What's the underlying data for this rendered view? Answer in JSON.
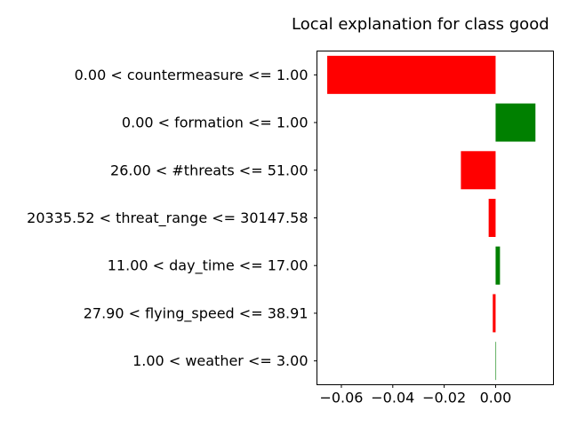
{
  "chart_data": {
    "type": "bar",
    "orientation": "horizontal",
    "title": "Local explanation for class good",
    "xlabel": "",
    "ylabel": "",
    "grid": false,
    "xlim": [
      -0.0695,
      0.0225
    ],
    "xticks": [
      -0.06,
      -0.04,
      -0.02,
      0.0
    ],
    "xtick_labels": [
      "−0.06",
      "−0.04",
      "−0.02",
      "0.00"
    ],
    "categories": [
      "0.00 < countermeasure <= 1.00",
      "0.00 < formation <= 1.00",
      "26.00 < #threats <= 51.00",
      "20335.52 < threat_range <= 30147.58",
      "11.00 < day_time <= 17.00",
      "27.90 < flying_speed <= 38.91",
      "1.00 < weather <= 3.00"
    ],
    "values": [
      -0.0655,
      0.0155,
      -0.0135,
      -0.0027,
      0.0017,
      -0.0011,
      0.0002
    ],
    "colors": {
      "positive": "#008000",
      "negative": "#ff0000"
    }
  }
}
